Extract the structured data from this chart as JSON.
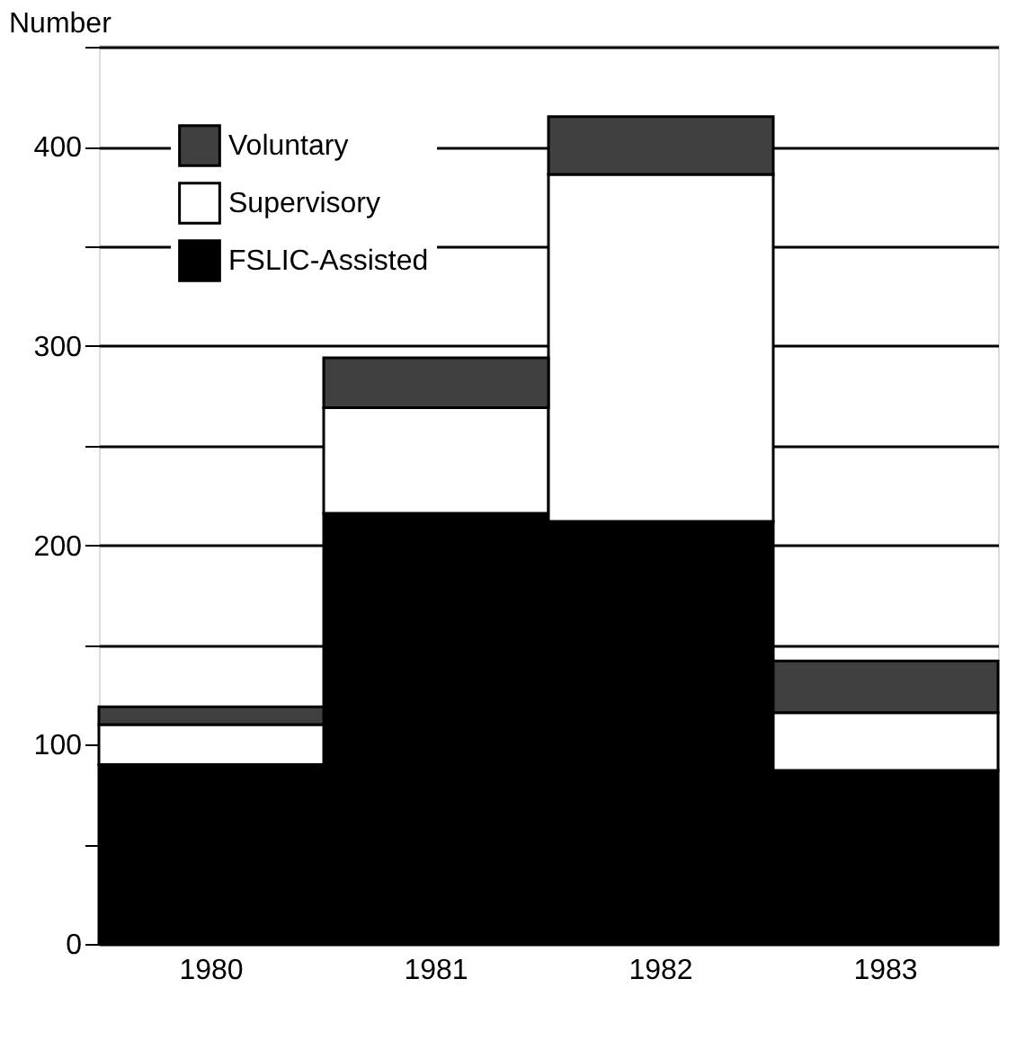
{
  "chart_data": {
    "type": "bar",
    "ylabel": "Number",
    "stacked": true,
    "categories": [
      "1980",
      "1981",
      "1982",
      "1983"
    ],
    "series": [
      {
        "name": "FSLIC-Assisted",
        "color": "#000000",
        "values": [
          90,
          216,
          212,
          87
        ]
      },
      {
        "name": "Supervisory",
        "color": "#ffffff",
        "values": [
          20,
          53,
          174,
          29
        ]
      },
      {
        "name": "Voluntary",
        "color": "#404040",
        "values": [
          9,
          25,
          29,
          26
        ]
      }
    ],
    "ylim": [
      0,
      451
    ],
    "yticks": [
      0,
      {
        "value": 50,
        "label": null
      },
      100,
      {
        "value": 150,
        "label": null
      },
      200,
      {
        "value": 250,
        "label": null
      },
      300,
      {
        "value": 350,
        "label": null
      },
      400,
      {
        "value": 450,
        "label": null
      }
    ],
    "grid": "y",
    "legend": "top left"
  }
}
